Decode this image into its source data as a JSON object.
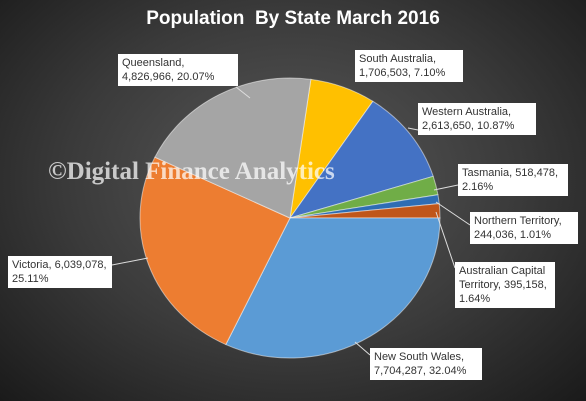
{
  "chart_data": {
    "type": "pie",
    "title": "Population  By State March 2016",
    "watermark": "©Digital Finance Analytics",
    "values": [
      1706503,
      2613650,
      518478,
      244036,
      395158,
      7704287,
      6039078,
      4826966
    ],
    "value_labels": [
      "South Australia, 1,706,503, 7.10%",
      "Western Australia, 2,613,650, 10.87%",
      "Tasmania, 518,478, 2.16%",
      "Northern Territory, 244,036, 1.01%",
      "Australian Capital Territory, 395,158, 1.64%",
      "New South Wales, 7,704,287, 32.04%",
      "Victoria, 6,039,078, 25.11%",
      "Queensland, 4,826,966, 20.07%"
    ],
    "colors": [
      "#ffc000",
      "#4472c4",
      "#70ad47",
      "#2e6db4",
      "#c0561a",
      "#5b9bd5",
      "#ed7d31",
      "#a5a5a5"
    ]
  }
}
